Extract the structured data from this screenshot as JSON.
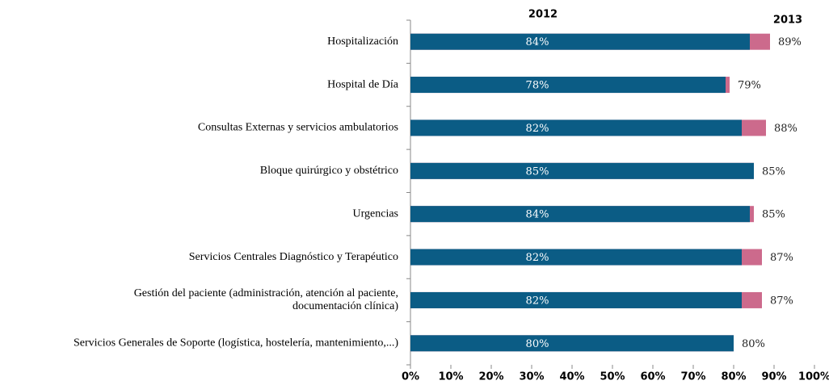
{
  "chart_data": {
    "type": "bar",
    "orientation": "horizontal",
    "categories": [
      "Hospitalización",
      "Hospital de Día",
      "Consultas Externas y servicios ambulatorios",
      "Bloque quirúrgico y obstétrico",
      "Urgencias",
      "Servicios Centrales Diagnóstico y Terapéutico",
      "Gestión del paciente (administración, atención al paciente,\ndocumentación clínica)",
      "Servicios Generales de Soporte (logística, hostelería, mantenimiento,...)"
    ],
    "series": [
      {
        "name": "2012",
        "color": "#0b5c85",
        "values": [
          84,
          78,
          82,
          85,
          84,
          82,
          82,
          80
        ],
        "value_labels": [
          "84%",
          "78%",
          "82%",
          "85%",
          "84%",
          "82%",
          "82%",
          "80%"
        ]
      },
      {
        "name": "2013",
        "color": "#cc6a8c",
        "values": [
          89,
          79,
          88,
          85,
          85,
          87,
          87,
          80
        ],
        "value_labels": [
          "89%",
          "79%",
          "88%",
          "85%",
          "85%",
          "87%",
          "87%",
          "80%"
        ]
      }
    ],
    "xlim": [
      0,
      100
    ],
    "xticks": [
      {
        "value": 0,
        "label": "0%"
      },
      {
        "value": 10,
        "label": "10%"
      },
      {
        "value": 20,
        "label": "20%"
      },
      {
        "value": 30,
        "label": "30%"
      },
      {
        "value": 40,
        "label": "40%"
      },
      {
        "value": 50,
        "label": "50%"
      },
      {
        "value": 60,
        "label": "60%"
      },
      {
        "value": 70,
        "label": "70%"
      },
      {
        "value": 80,
        "label": "80%"
      },
      {
        "value": 90,
        "label": "90%"
      },
      {
        "value": 100,
        "label": "100%"
      }
    ]
  }
}
